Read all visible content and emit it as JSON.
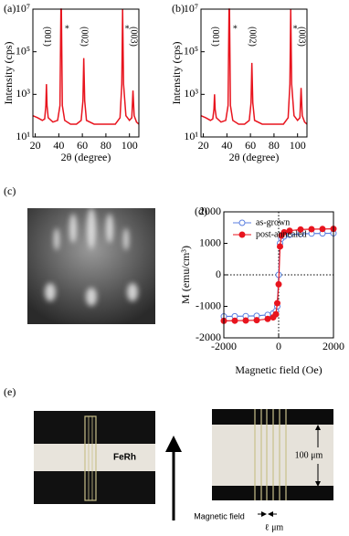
{
  "chart_data": [
    {
      "type": "line",
      "label": "(a)",
      "xlabel": "2θ (degree)",
      "ylabel": "Intensity (cps)",
      "log_y": true,
      "xlim": [
        18,
        108
      ],
      "xticks": [
        20,
        40,
        60,
        80,
        100
      ],
      "ylim": [
        10,
        10000000
      ],
      "yticks": [
        {
          "value": 10,
          "label": "10¹"
        },
        {
          "value": 1000,
          "label": "10³"
        },
        {
          "value": 100000,
          "label": "10⁵"
        },
        {
          "value": 10000000,
          "label": "10⁷"
        }
      ],
      "x": [
        18,
        22,
        26,
        28,
        29,
        29.5,
        30,
        31,
        35,
        39,
        41,
        41.8,
        42.2,
        43,
        45,
        50,
        55,
        59,
        60.5,
        61.2,
        62,
        63.5,
        70,
        80,
        88,
        92,
        93.5,
        94.2,
        95,
        97,
        100,
        102,
        103,
        104,
        106,
        108
      ],
      "series": [
        {
          "color": "#e8141e",
          "values": [
            100,
            80,
            60,
            70,
            300,
            3000,
            300,
            80,
            50,
            60,
            300,
            10000000,
            10000000,
            300,
            60,
            40,
            40,
            60,
            500,
            50000,
            500,
            60,
            40,
            40,
            40,
            80,
            3000,
            10000000,
            3000,
            100,
            60,
            80,
            1500,
            100,
            50,
            40
          ]
        }
      ],
      "annotations": [
        {
          "text": "(001)",
          "x": 30
        },
        {
          "text": "*",
          "x": 47
        },
        {
          "text": "(002)",
          "x": 61.2
        },
        {
          "text": "*",
          "x": 98
        },
        {
          "text": "(003)",
          "x": 103
        }
      ]
    },
    {
      "type": "line",
      "label": "(b)",
      "xlabel": "2θ (degree)",
      "ylabel": "Intensity (cps)",
      "log_y": true,
      "xlim": [
        18,
        108
      ],
      "xticks": [
        20,
        40,
        60,
        80,
        100
      ],
      "ylim": [
        10,
        10000000
      ],
      "yticks": [
        {
          "value": 10,
          "label": "10¹"
        },
        {
          "value": 1000,
          "label": "10³"
        },
        {
          "value": 100000,
          "label": "10⁵"
        },
        {
          "value": 10000000,
          "label": "10⁷"
        }
      ],
      "x": [
        18,
        22,
        26,
        28,
        29,
        29.5,
        30,
        31,
        35,
        39,
        41,
        41.8,
        42.2,
        43,
        45,
        50,
        55,
        59,
        60.5,
        61.2,
        62,
        63.5,
        70,
        80,
        88,
        92,
        93.5,
        94.2,
        95,
        97,
        100,
        102,
        103,
        104,
        106,
        108
      ],
      "series": [
        {
          "color": "#e8141e",
          "values": [
            100,
            80,
            60,
            70,
            200,
            1000,
            200,
            80,
            50,
            60,
            300,
            10000000,
            10000000,
            300,
            60,
            40,
            40,
            60,
            400,
            30000,
            400,
            60,
            40,
            40,
            40,
            80,
            3000,
            10000000,
            3000,
            100,
            60,
            80,
            2000,
            100,
            50,
            40
          ]
        }
      ],
      "annotations": [
        {
          "text": "(001)",
          "x": 30
        },
        {
          "text": "*",
          "x": 47
        },
        {
          "text": "(002)",
          "x": 61.2
        },
        {
          "text": "*",
          "x": 98
        },
        {
          "text": "(003)",
          "x": 103
        }
      ]
    },
    {
      "type": "line",
      "label": "(d)",
      "xlabel": "Magnetic field  (Oe)",
      "ylabel": "M (emu/cm³)",
      "zero_lines": true,
      "legend": "upper left",
      "xlim": [
        -2000,
        2000
      ],
      "xticks": [
        -2000,
        0,
        2000
      ],
      "ylim": [
        -2000,
        2000
      ],
      "yticks": [
        -2000,
        -1000,
        0,
        1000,
        2000
      ],
      "x": [
        -2000,
        -1600,
        -1200,
        -800,
        -400,
        -200,
        -100,
        -50,
        0,
        50,
        100,
        200,
        400,
        800,
        1200,
        1600,
        2000
      ],
      "series": [
        {
          "name": "as-grown",
          "color": "#5b7fe0",
          "marker": "open",
          "values": [
            -1320,
            -1315,
            -1310,
            -1300,
            -1270,
            -1220,
            -1150,
            -1000,
            0,
            1000,
            1150,
            1220,
            1270,
            1300,
            1310,
            1315,
            1320
          ]
        },
        {
          "name": "post-annealed",
          "color": "#e8141e",
          "marker": "filled",
          "values": [
            -1460,
            -1455,
            -1450,
            -1440,
            -1400,
            -1350,
            -1250,
            -900,
            -300,
            900,
            1250,
            1350,
            1400,
            1440,
            1450,
            1455,
            1460
          ]
        }
      ]
    }
  ],
  "panels": {
    "c": {
      "label": "(c)"
    },
    "e": {
      "label": "(e)",
      "sample": "FeRh",
      "field": "Magnetic field",
      "scale": "100 μm",
      "width": "ℓ μm"
    }
  }
}
